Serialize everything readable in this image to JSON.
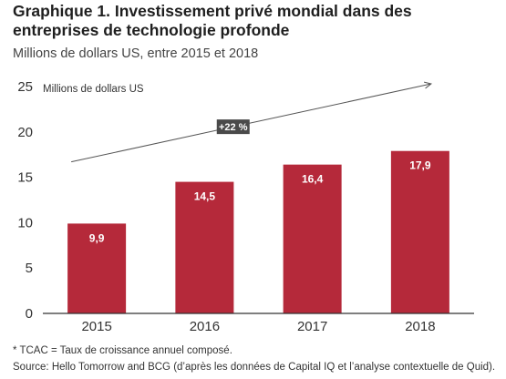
{
  "header": {
    "title": "Graphique 1. Investissement privé mondial dans des entreprises de technologie profonde",
    "subtitle": "Millions de dollars US, entre 2015 et 2018"
  },
  "chart_data": {
    "type": "bar",
    "categories": [
      "2015",
      "2016",
      "2017",
      "2018"
    ],
    "values": [
      9.9,
      14.5,
      16.4,
      17.9
    ],
    "value_labels": [
      "9,9",
      "14,5",
      "16,4",
      "17,9"
    ],
    "ylabel": "Millions de dollars US",
    "ylim": [
      0,
      25
    ],
    "yticks": [
      0,
      5,
      10,
      15,
      20,
      25
    ],
    "grid": false,
    "bar_color": "#b5293a",
    "annotation": {
      "text": "+22 %",
      "type": "trend-arrow"
    }
  },
  "footer": {
    "footnote": "* TCAC = Taux de croissance annuel composé.",
    "source": "Source: Hello Tomorrow and BCG (d’après les données de Capital IQ et l’analyse contextuelle de Quid)."
  }
}
